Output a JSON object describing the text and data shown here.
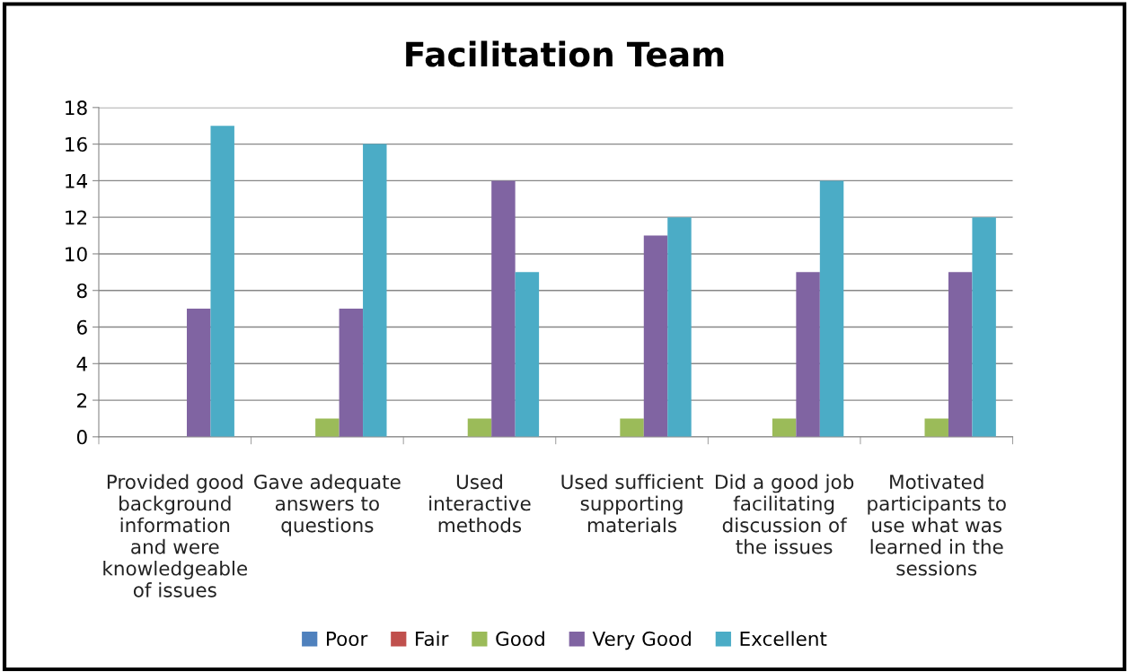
{
  "chart_data": {
    "type": "bar",
    "title": "Facilitation Team",
    "categories": [
      "Provided good\nbackground\ninformation\nand were\nknowledgeable\nof issues",
      "Gave adequate\nanswers to\nquestions",
      "Used\ninteractive\nmethods",
      "Used sufficient\nsupporting\nmaterials",
      "Did a good job\nfacilitating\ndiscussion of\nthe issues",
      "Motivated\nparticipants to\nuse what was\nlearned in the\nsessions"
    ],
    "series": [
      {
        "name": "Poor",
        "color": "#4f81bd",
        "values": [
          0,
          0,
          0,
          0,
          0,
          0
        ]
      },
      {
        "name": "Fair",
        "color": "#c0504d",
        "values": [
          0,
          0,
          0,
          0,
          0,
          0
        ]
      },
      {
        "name": "Good",
        "color": "#9bbb59",
        "values": [
          0,
          1,
          1,
          1,
          1,
          1
        ]
      },
      {
        "name": "Very Good",
        "color": "#8064a2",
        "values": [
          7,
          7,
          14,
          11,
          9,
          9
        ]
      },
      {
        "name": "Excellent",
        "color": "#4bacc6",
        "values": [
          17,
          16,
          9,
          12,
          14,
          12
        ]
      }
    ],
    "ylim": [
      0,
      18
    ],
    "yticks": [
      0,
      2,
      4,
      6,
      8,
      10,
      12,
      14,
      16,
      18
    ],
    "grid": "y",
    "legend": "bottom"
  }
}
